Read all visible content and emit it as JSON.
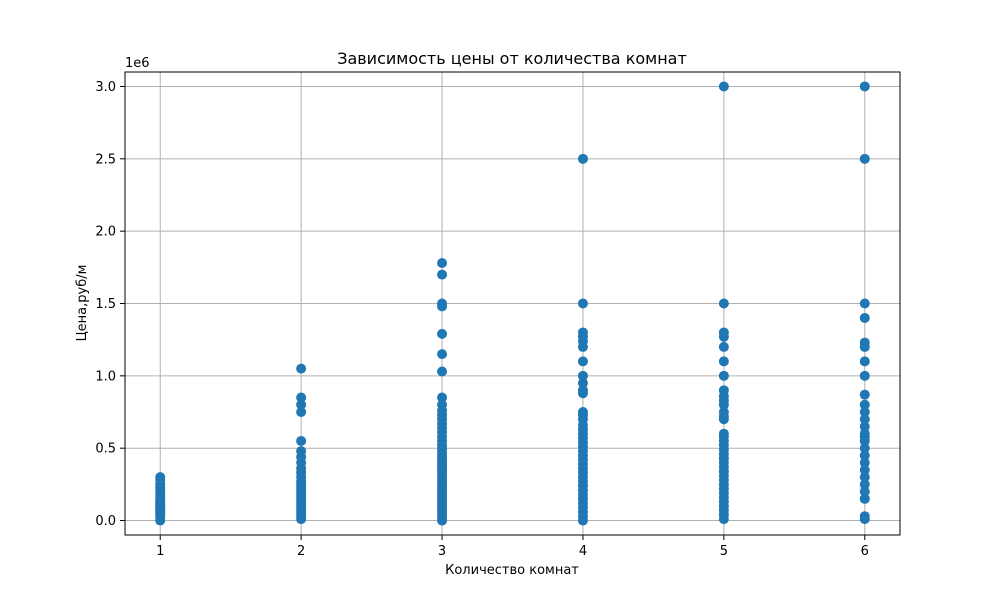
{
  "chart_data": {
    "type": "scatter",
    "title": "Зависимость цены от количества комнат",
    "xlabel": "Количество комнат",
    "ylabel": "Цена,руб/м",
    "y_offset_label": "1e6",
    "xlim": [
      0.75,
      6.25
    ],
    "ylim": [
      -0.1,
      3.1
    ],
    "x_ticks": [
      1,
      2,
      3,
      4,
      5,
      6
    ],
    "x_tick_labels": [
      "1",
      "2",
      "3",
      "4",
      "5",
      "6"
    ],
    "y_ticks": [
      0.0,
      0.5,
      1.0,
      1.5,
      2.0,
      2.5,
      3.0
    ],
    "y_tick_labels": [
      "0.0",
      "0.5",
      "1.0",
      "1.5",
      "2.0",
      "2.5",
      "3.0"
    ],
    "grid": true,
    "marker_color": "#1f77b4",
    "series": [
      {
        "x": 1,
        "y": [
          0.0,
          0.02,
          0.04,
          0.05,
          0.06,
          0.07,
          0.08,
          0.09,
          0.1,
          0.11,
          0.12,
          0.13,
          0.14,
          0.15,
          0.17,
          0.19,
          0.21,
          0.23,
          0.25,
          0.28,
          0.3
        ]
      },
      {
        "x": 2,
        "y": [
          0.01,
          0.03,
          0.05,
          0.07,
          0.09,
          0.11,
          0.13,
          0.15,
          0.17,
          0.19,
          0.21,
          0.23,
          0.25,
          0.27,
          0.3,
          0.33,
          0.36,
          0.4,
          0.44,
          0.48,
          0.55,
          0.75,
          0.8,
          0.85,
          1.05
        ]
      },
      {
        "x": 3,
        "y": [
          0.0,
          0.02,
          0.04,
          0.06,
          0.08,
          0.1,
          0.12,
          0.14,
          0.16,
          0.18,
          0.2,
          0.22,
          0.24,
          0.26,
          0.28,
          0.3,
          0.32,
          0.34,
          0.36,
          0.38,
          0.4,
          0.42,
          0.44,
          0.46,
          0.48,
          0.5,
          0.52,
          0.55,
          0.58,
          0.61,
          0.64,
          0.67,
          0.7,
          0.73,
          0.76,
          0.8,
          0.85,
          1.03,
          1.15,
          1.29,
          1.48,
          1.5,
          1.7,
          1.78
        ]
      },
      {
        "x": 4,
        "y": [
          0.0,
          0.03,
          0.06,
          0.09,
          0.12,
          0.15,
          0.18,
          0.21,
          0.24,
          0.27,
          0.3,
          0.33,
          0.36,
          0.39,
          0.42,
          0.45,
          0.48,
          0.51,
          0.54,
          0.57,
          0.6,
          0.63,
          0.66,
          0.7,
          0.73,
          0.75,
          0.88,
          0.9,
          0.95,
          1.0,
          1.1,
          1.2,
          1.24,
          1.27,
          1.3,
          1.5,
          2.5
        ]
      },
      {
        "x": 5,
        "y": [
          0.01,
          0.04,
          0.07,
          0.1,
          0.13,
          0.16,
          0.19,
          0.22,
          0.25,
          0.28,
          0.31,
          0.34,
          0.37,
          0.4,
          0.43,
          0.46,
          0.49,
          0.52,
          0.55,
          0.58,
          0.6,
          0.7,
          0.72,
          0.75,
          0.8,
          0.83,
          0.86,
          0.9,
          1.0,
          1.1,
          1.2,
          1.27,
          1.3,
          1.5,
          3.0
        ]
      },
      {
        "x": 6,
        "y": [
          0.01,
          0.03,
          0.15,
          0.2,
          0.25,
          0.3,
          0.35,
          0.4,
          0.45,
          0.5,
          0.55,
          0.58,
          0.6,
          0.65,
          0.7,
          0.75,
          0.8,
          0.87,
          1.0,
          1.1,
          1.2,
          1.23,
          1.4,
          1.5,
          2.5,
          3.0
        ]
      }
    ]
  }
}
